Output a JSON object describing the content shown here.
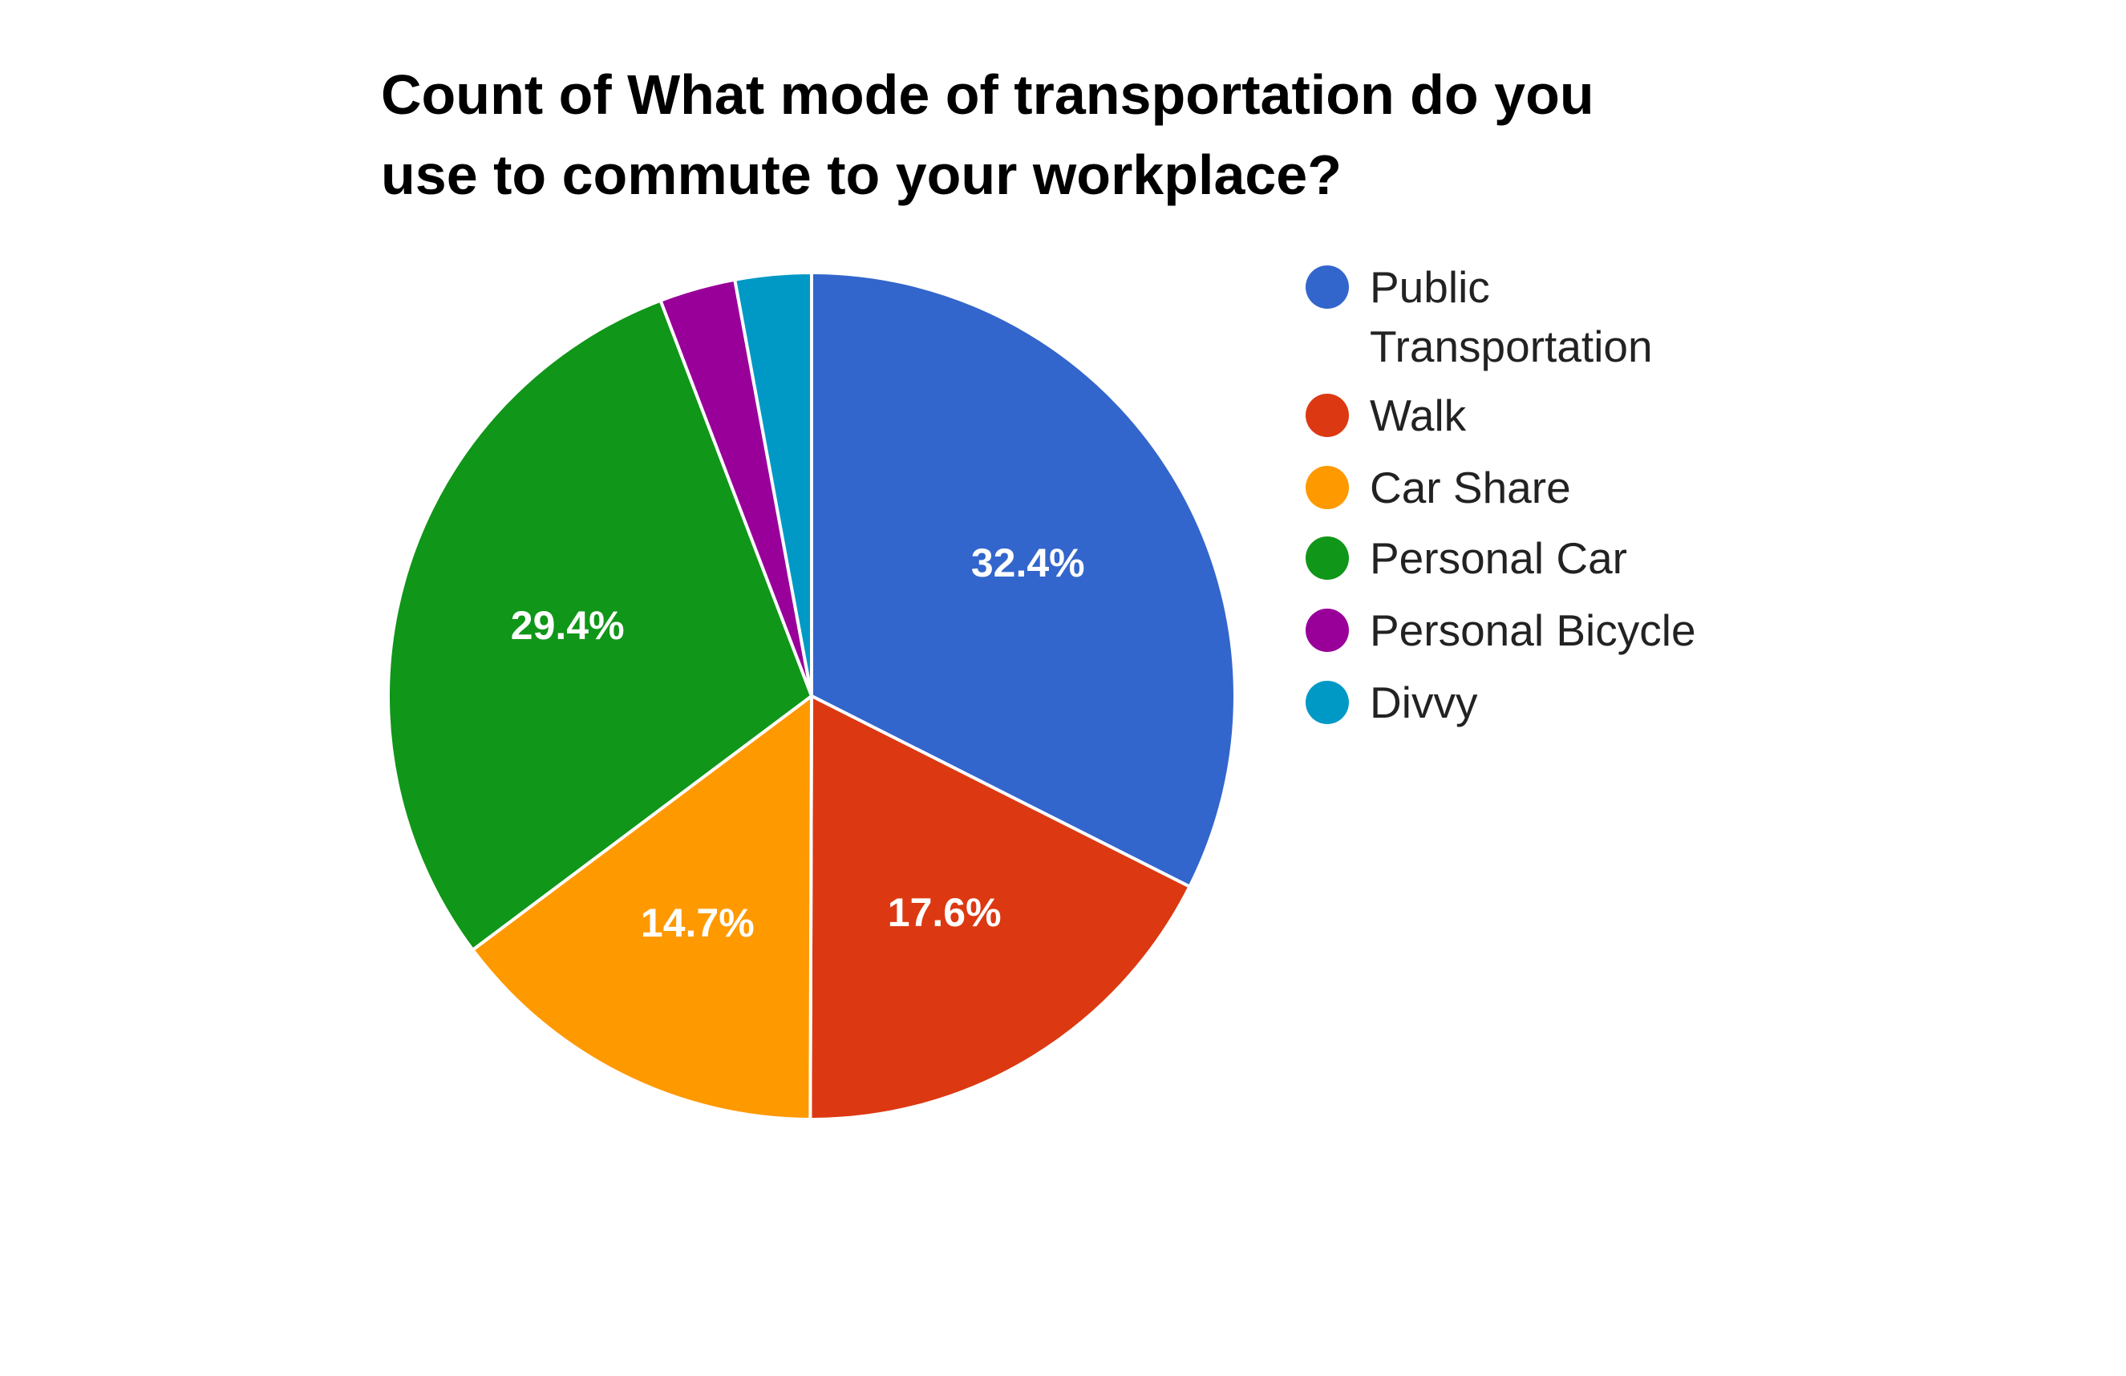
{
  "chart_data": {
    "type": "pie",
    "title_lines": [
      "Count of What mode of transportation do you",
      "use to commute to your workplace?"
    ],
    "categories": [
      "Public Transportation",
      "Walk",
      "Car Share",
      "Personal Car",
      "Personal Bicycle",
      "Divvy"
    ],
    "legend_lines": [
      [
        "Public",
        "Transportation"
      ],
      [
        "Walk"
      ],
      [
        "Car Share"
      ],
      [
        "Personal Car"
      ],
      [
        "Personal Bicycle"
      ],
      [
        "Divvy"
      ]
    ],
    "values": [
      32.4,
      17.6,
      14.7,
      29.4,
      2.9,
      2.9
    ],
    "slice_labels": [
      "32.4%",
      "17.6%",
      "14.7%",
      "29.4%",
      "",
      ""
    ],
    "colors": [
      "#3366CC",
      "#DC3912",
      "#FF9900",
      "#109618",
      "#990099",
      "#0099C6"
    ],
    "legend_position": "right",
    "start_angle": "top, clockwise"
  }
}
